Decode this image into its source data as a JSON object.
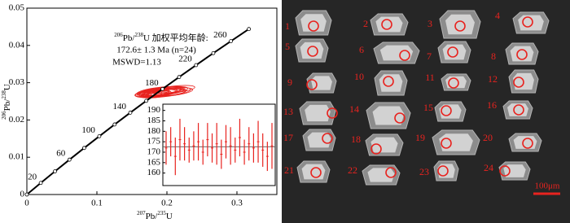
{
  "chart_data": [
    {
      "type": "concordia",
      "x_label": [
        "207",
        "Pb/",
        "235",
        "U"
      ],
      "y_label": [
        "206",
        "Pb/",
        "238",
        "U"
      ],
      "xlim": [
        0,
        0.357
      ],
      "xticks": [
        0,
        0.1,
        0.2,
        0.3
      ],
      "ylim": [
        0,
        0.05
      ],
      "yticks": [
        0,
        0.01,
        0.02,
        0.03,
        0.04,
        0.05
      ],
      "concordia": {
        "color": "#000000",
        "x": [
          0,
          0.01989,
          0.04016,
          0.06083,
          0.0819,
          0.1034,
          0.12532,
          0.14767,
          0.17047,
          0.19371,
          0.21742,
          0.2416,
          0.26625,
          0.2914,
          0.31705
        ],
        "y": [
          0,
          0.003107,
          0.006224,
          0.009351,
          0.012487,
          0.015633,
          0.018789,
          0.021955,
          0.02513,
          0.028315,
          0.03151,
          0.034714,
          0.037929,
          0.041153,
          0.044387
        ],
        "age_labels": [
          null,
          20,
          null,
          60,
          null,
          100,
          null,
          140,
          null,
          180,
          null,
          220,
          null,
          260,
          null
        ]
      },
      "ellipses": {
        "color": "#e8231f",
        "x": [
          0.185,
          0.19,
          0.18,
          0.195,
          0.2,
          0.188,
          0.182,
          0.192,
          0.178,
          0.198,
          0.186,
          0.205,
          0.175,
          0.193,
          0.189,
          0.183,
          0.21,
          0.187,
          0.196,
          0.181,
          0.191,
          0.202,
          0.184,
          0.194
        ],
        "y": [
          0.0272,
          0.0276,
          0.0268,
          0.0278,
          0.0274,
          0.0271,
          0.0273,
          0.0277,
          0.0266,
          0.028,
          0.0271,
          0.0275,
          0.0269,
          0.0276,
          0.0272,
          0.027,
          0.0282,
          0.0268,
          0.0275,
          0.0271,
          0.0277,
          0.0273,
          0.0267,
          0.0274
        ],
        "x_err": [
          0.03,
          0.025,
          0.02,
          0.035,
          0.028,
          0.018,
          0.022,
          0.03,
          0.015,
          0.025,
          0.02,
          0.032,
          0.018,
          0.026,
          0.024,
          0.02,
          0.03,
          0.016,
          0.028,
          0.022,
          0.034,
          0.025,
          0.019,
          0.04
        ],
        "y_err": [
          0.0009,
          0.0008,
          0.0007,
          0.001,
          0.0009,
          0.0007,
          0.0008,
          0.0009,
          0.0006,
          0.0008,
          0.0007,
          0.001,
          0.0007,
          0.0008,
          0.0009,
          0.0007,
          0.0009,
          0.0006,
          0.0008,
          0.0007,
          0.0011,
          0.0008,
          0.0007,
          0.0012
        ]
      },
      "annotation": {
        "line1": [
          "206",
          "Pb/",
          "238",
          "U 加权平均年龄:"
        ],
        "line2": "172.6± 1.3 Ma (n=24)",
        "line3": "MSWD=1.13"
      }
    },
    {
      "type": "errorbar",
      "ylim": [
        154,
        193
      ],
      "yticks": [
        160,
        165,
        170,
        175,
        180,
        185,
        190
      ],
      "mean": 172.6,
      "color": "#e8231f",
      "values": [
        172,
        175,
        168,
        176,
        174,
        171,
        173,
        175,
        170,
        176,
        172,
        174,
        169,
        175,
        173,
        171,
        177,
        170,
        174,
        172,
        175,
        171,
        168,
        173
      ],
      "errors": [
        8,
        7,
        9,
        10,
        8,
        6,
        7,
        9,
        6,
        8,
        7,
        10,
        7,
        8,
        9,
        6,
        9,
        6,
        8,
        7,
        10,
        8,
        7,
        11
      ]
    }
  ],
  "cl_image": {
    "grain_labels": [
      "1",
      "2",
      "3",
      "4",
      "5",
      "6",
      "7",
      "8",
      "9",
      "10",
      "11",
      "12",
      "13",
      "14",
      "15",
      "16",
      "17",
      "18",
      "19",
      "20",
      "21",
      "22",
      "23",
      "24"
    ],
    "scale_bar": "100μm"
  }
}
